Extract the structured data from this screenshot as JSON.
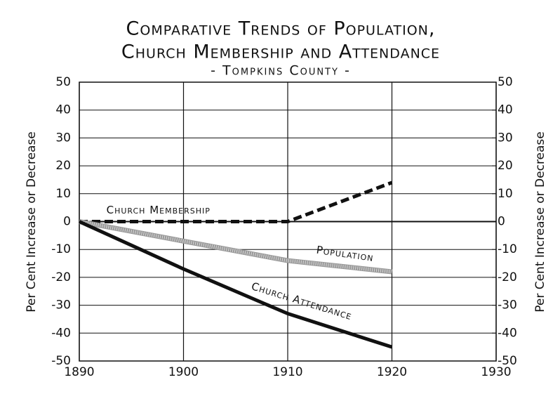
{
  "chart_data": {
    "type": "line",
    "title": [
      "Comparative Trends of Population,",
      "Church Membership and Attendance"
    ],
    "subtitle": "- Tompkins County -",
    "y_label": "Per Cent Increase or Decrease",
    "y2_label": "Per Cent Increase or Decrease",
    "x": [
      1890,
      1900,
      1910,
      1920
    ],
    "xlim": [
      1890,
      1930
    ],
    "xticks": [
      1890,
      1900,
      1910,
      1920,
      1930
    ],
    "ylim": [
      -50,
      50
    ],
    "yticks": [
      -50,
      -40,
      -30,
      -20,
      -10,
      0,
      10,
      20,
      30,
      40,
      50
    ],
    "y2lim": [
      -50,
      50
    ],
    "y2ticks": [
      -50,
      -40,
      -30,
      -20,
      -10,
      0,
      10,
      20,
      30,
      40,
      50
    ],
    "grid": true,
    "series": [
      {
        "name": "Church Membership",
        "color": "#111111",
        "style": "dashed",
        "values": [
          0,
          0,
          0,
          14
        ]
      },
      {
        "name": "Population",
        "color": "#999999",
        "style": "hatched",
        "values": [
          0,
          -7,
          -14,
          -18
        ]
      },
      {
        "name": "Church Attendance",
        "color": "#111111",
        "style": "solid",
        "values": [
          0,
          -17,
          -33,
          -45
        ]
      }
    ]
  }
}
